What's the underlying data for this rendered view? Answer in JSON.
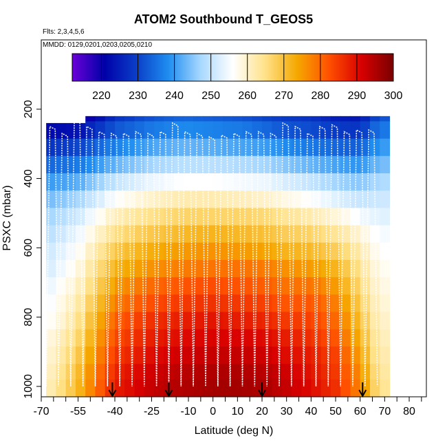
{
  "chart_data": {
    "type": "heatmap",
    "title": "ATOM2 Southbound T_GEOS5",
    "annotation_flights": "Flts: 2,3,4,5,6",
    "annotation_dates": "MMDD: 0129,0201,0203,0205,0210",
    "xlabel": "Latitude (deg N)",
    "ylabel": "PSXC (mbar)",
    "xlim": [
      -70,
      87
    ],
    "ylim": [
      1030,
      0
    ],
    "x_ticks": [
      -70,
      -55,
      -40,
      -25,
      -10,
      0,
      10,
      20,
      30,
      40,
      50,
      60,
      70,
      80
    ],
    "x_ticks_minor": [
      -65,
      -60,
      -50,
      -45,
      -35,
      -30,
      -20,
      -15,
      -5,
      5,
      15,
      25,
      35,
      45,
      55,
      65,
      75,
      85
    ],
    "y_ticks": [
      200,
      400,
      600,
      800,
      1000
    ],
    "colorbar": {
      "range": [
        212,
        300
      ],
      "tick_values": [
        220,
        230,
        240,
        250,
        260,
        270,
        280,
        290,
        300
      ],
      "tick_labels": [
        "220",
        "230",
        "240",
        "250",
        "260",
        "270",
        "280",
        "290",
        "300"
      ],
      "stops": [
        "#6a00d8",
        "#0000a8",
        "#0a3ec8",
        "#1f8ef0",
        "#a8d8ff",
        "#ffffff",
        "#ffe28a",
        "#f5a800",
        "#ff5000",
        "#d80000",
        "#7a0000"
      ]
    },
    "pressure_levels": [
      210,
      260,
      310,
      360,
      410,
      460,
      510,
      560,
      610,
      660,
      710,
      760,
      810,
      860,
      910,
      960,
      1000
    ],
    "latitude_columns": [
      -67,
      -55,
      -40,
      -25,
      -12,
      0,
      12,
      22,
      30,
      40,
      50,
      60,
      68
    ],
    "temperature_profile_K": [
      [
        218,
        216,
        228,
        232,
        234,
        233,
        232,
        230,
        229,
        228,
        225,
        224,
        232
      ],
      [
        222,
        223,
        232,
        236,
        238,
        237,
        236,
        234,
        232,
        231,
        229,
        228,
        236
      ],
      [
        228,
        230,
        237,
        241,
        243,
        242,
        241,
        240,
        238,
        236,
        234,
        233,
        240
      ],
      [
        234,
        236,
        243,
        247,
        249,
        249,
        248,
        247,
        245,
        243,
        241,
        239,
        244
      ],
      [
        240,
        242,
        250,
        254,
        256,
        256,
        255,
        254,
        252,
        250,
        247,
        245,
        248
      ],
      [
        244,
        247,
        256,
        260,
        262,
        262,
        261,
        260,
        258,
        256,
        253,
        250,
        251
      ],
      [
        247,
        251,
        261,
        265,
        267,
        267,
        267,
        266,
        264,
        262,
        259,
        255,
        253
      ],
      [
        249,
        254,
        265,
        269,
        271,
        272,
        271,
        270,
        268,
        267,
        264,
        259,
        255
      ],
      [
        251,
        256,
        269,
        273,
        275,
        276,
        275,
        274,
        272,
        271,
        268,
        262,
        256
      ],
      [
        252,
        258,
        272,
        276,
        278,
        279,
        279,
        278,
        276,
        275,
        272,
        264,
        257
      ],
      [
        254,
        260,
        275,
        280,
        282,
        283,
        282,
        281,
        279,
        279,
        275,
        266,
        258
      ],
      [
        255,
        262,
        278,
        283,
        285,
        286,
        285,
        284,
        282,
        282,
        278,
        268,
        259
      ],
      [
        256,
        264,
        281,
        286,
        288,
        289,
        288,
        287,
        285,
        284,
        280,
        270,
        260
      ],
      [
        258,
        266,
        283,
        288,
        290,
        291,
        291,
        290,
        288,
        286,
        282,
        272,
        261
      ],
      [
        259,
        268,
        285,
        290,
        292,
        293,
        293,
        292,
        290,
        288,
        284,
        274,
        262
      ],
      [
        260,
        270,
        287,
        292,
        294,
        295,
        295,
        294,
        292,
        289,
        285,
        276,
        263
      ],
      [
        261,
        271,
        288,
        293,
        295,
        296,
        296,
        295,
        293,
        290,
        286,
        277,
        264
      ]
    ],
    "profile_arrows_latitude": [
      -41,
      -18,
      20,
      61
    ],
    "flight_track_note": "White lines show aircraft vertical profiles along the southbound transect"
  }
}
